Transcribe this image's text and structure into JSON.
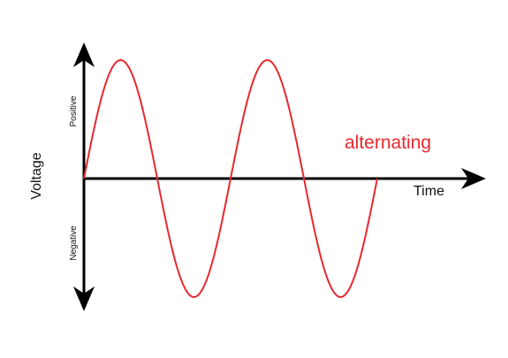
{
  "labels": {
    "y_axis": "Voltage",
    "positive": "Positive",
    "negative": "Negative",
    "x_axis": "Time",
    "waveform": "alternating"
  },
  "colors": {
    "axis": "#000000",
    "waveform": "#e8282e"
  },
  "waveform": {
    "shape": "sine",
    "cycles": 2
  }
}
